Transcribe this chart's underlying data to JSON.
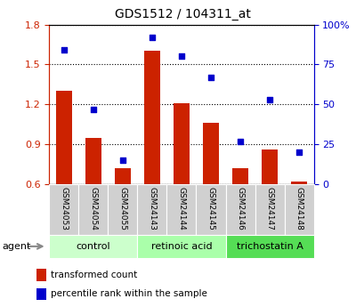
{
  "title": "GDS1512 / 104311_at",
  "categories": [
    "GSM24053",
    "GSM24054",
    "GSM24055",
    "GSM24143",
    "GSM24144",
    "GSM24145",
    "GSM24146",
    "GSM24147",
    "GSM24148"
  ],
  "bar_values": [
    1.3,
    0.95,
    0.72,
    1.6,
    1.21,
    1.06,
    0.72,
    0.86,
    0.62
  ],
  "scatter_values": [
    84,
    47,
    15,
    92,
    80,
    67,
    27,
    53,
    20
  ],
  "ylim_left": [
    0.6,
    1.8
  ],
  "ylim_right": [
    0,
    100
  ],
  "yticks_left": [
    0.6,
    0.9,
    1.2,
    1.5,
    1.8
  ],
  "yticks_right": [
    0,
    25,
    50,
    75,
    100
  ],
  "yticklabels_right": [
    "0",
    "25",
    "50",
    "75",
    "100%"
  ],
  "bar_color": "#cc2200",
  "scatter_color": "#0000cc",
  "groups": [
    {
      "label": "control",
      "indices": [
        0,
        1,
        2
      ],
      "color": "#ccffcc"
    },
    {
      "label": "retinoic acid",
      "indices": [
        3,
        4,
        5
      ],
      "color": "#aaffaa"
    },
    {
      "label": "trichostatin A",
      "indices": [
        6,
        7,
        8
      ],
      "color": "#55dd55"
    }
  ],
  "legend_bar_label": "transformed count",
  "legend_scatter_label": "percentile rank within the sample",
  "agent_label": "agent",
  "tick_label_color_left": "#cc2200",
  "tick_label_color_right": "#0000cc",
  "bar_bottom": 0.6,
  "figsize": [
    4.1,
    3.45
  ],
  "dpi": 100
}
